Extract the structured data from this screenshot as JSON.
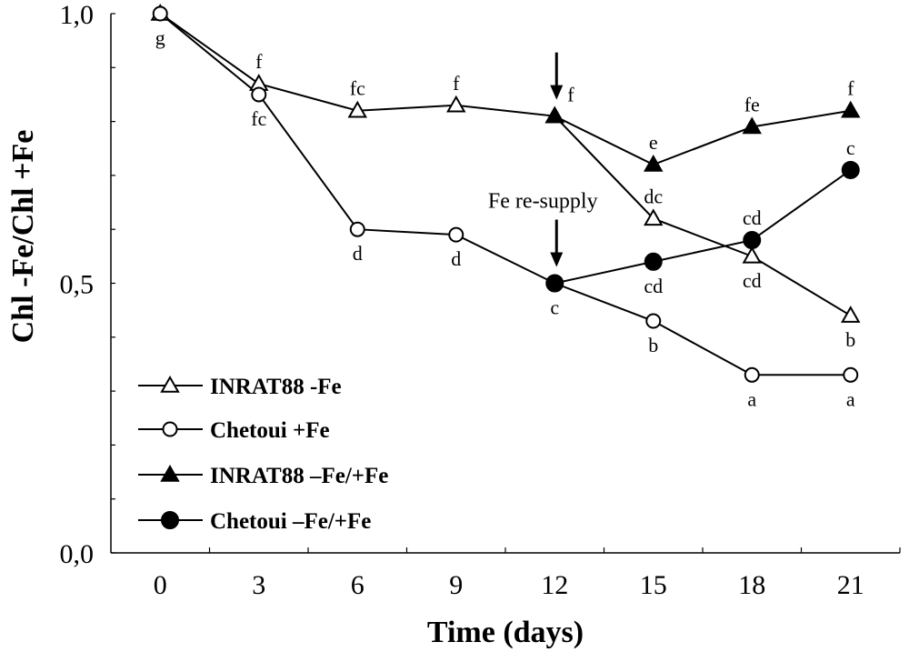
{
  "chart_data": {
    "type": "line",
    "title": "",
    "xlabel": "Time (days)",
    "ylabel": "Chl -Fe/Chl +Fe",
    "x": [
      0,
      3,
      6,
      9,
      12,
      15,
      18,
      21
    ],
    "xtick_labels": [
      "0",
      "3",
      "6",
      "9",
      "12",
      "15",
      "18",
      "21"
    ],
    "ylim": [
      0,
      1.0
    ],
    "yticks": [
      0,
      0.1,
      0.2,
      0.3,
      0.4,
      0.5,
      0.6,
      0.7,
      0.8,
      0.9,
      1.0
    ],
    "ytick_labels": [
      {
        "value": 0,
        "label": "0,0"
      },
      {
        "value": 0.5,
        "label": "0,5"
      },
      {
        "value": 1.0,
        "label": "1,0"
      }
    ],
    "grid": false,
    "legend_position": "bottom-left",
    "series": [
      {
        "name": "INRAT88 -Fe",
        "marker": "triangle-open",
        "x": [
          0,
          3,
          6,
          9,
          12,
          15,
          18,
          21
        ],
        "values": [
          1.0,
          0.87,
          0.82,
          0.83,
          0.81,
          0.62,
          0.55,
          0.44
        ]
      },
      {
        "name": "Chetoui +Fe",
        "marker": "circle-open",
        "x": [
          0,
          3,
          6,
          9,
          12,
          15,
          18,
          21
        ],
        "values": [
          1.0,
          0.85,
          0.6,
          0.59,
          0.5,
          0.43,
          0.33,
          0.33
        ]
      },
      {
        "name": "INRAT88 –Fe/+Fe",
        "marker": "triangle-filled",
        "x": [
          12,
          15,
          18,
          21
        ],
        "values": [
          0.81,
          0.72,
          0.79,
          0.82
        ]
      },
      {
        "name": "Chetoui –Fe/+Fe",
        "marker": "circle-filled",
        "x": [
          12,
          15,
          18,
          21
        ],
        "values": [
          0.5,
          0.54,
          0.58,
          0.71
        ]
      }
    ],
    "point_labels": [
      {
        "text": "g",
        "x": 0,
        "y": 1.0,
        "pos": "below"
      },
      {
        "text": "f",
        "x": 3,
        "y": 0.87,
        "pos": "above"
      },
      {
        "text": "fc",
        "x": 3,
        "y": 0.85,
        "pos": "below"
      },
      {
        "text": "fc",
        "x": 6,
        "y": 0.82,
        "pos": "above"
      },
      {
        "text": "d",
        "x": 6,
        "y": 0.6,
        "pos": "below"
      },
      {
        "text": "f",
        "x": 9,
        "y": 0.83,
        "pos": "above"
      },
      {
        "text": "d",
        "x": 9,
        "y": 0.59,
        "pos": "below"
      },
      {
        "text": "f",
        "x": 12,
        "y": 0.81,
        "pos": "upper-right"
      },
      {
        "text": "c",
        "x": 12,
        "y": 0.5,
        "pos": "below"
      },
      {
        "text": "e",
        "x": 15,
        "y": 0.72,
        "pos": "above"
      },
      {
        "text": "dc",
        "x": 15,
        "y": 0.62,
        "pos": "above"
      },
      {
        "text": "cd",
        "x": 15,
        "y": 0.54,
        "pos": "below"
      },
      {
        "text": "b",
        "x": 15,
        "y": 0.43,
        "pos": "below"
      },
      {
        "text": "fe",
        "x": 18,
        "y": 0.79,
        "pos": "above"
      },
      {
        "text": "cd",
        "x": 18,
        "y": 0.58,
        "pos": "above"
      },
      {
        "text": "cd",
        "x": 18,
        "y": 0.55,
        "pos": "below"
      },
      {
        "text": "a",
        "x": 18,
        "y": 0.33,
        "pos": "below"
      },
      {
        "text": "f",
        "x": 21,
        "y": 0.82,
        "pos": "above"
      },
      {
        "text": "c",
        "x": 21,
        "y": 0.71,
        "pos": "above"
      },
      {
        "text": "b",
        "x": 21,
        "y": 0.44,
        "pos": "below"
      },
      {
        "text": "a",
        "x": 21,
        "y": 0.33,
        "pos": "below"
      }
    ],
    "annotations": [
      {
        "text": "",
        "type": "arrow",
        "x": 12,
        "target_series": "INRAT88 –Fe/+Fe"
      },
      {
        "text": "Fe re-supply",
        "type": "arrow",
        "x": 12,
        "target_series": "Chetoui –Fe/+Fe"
      }
    ]
  }
}
